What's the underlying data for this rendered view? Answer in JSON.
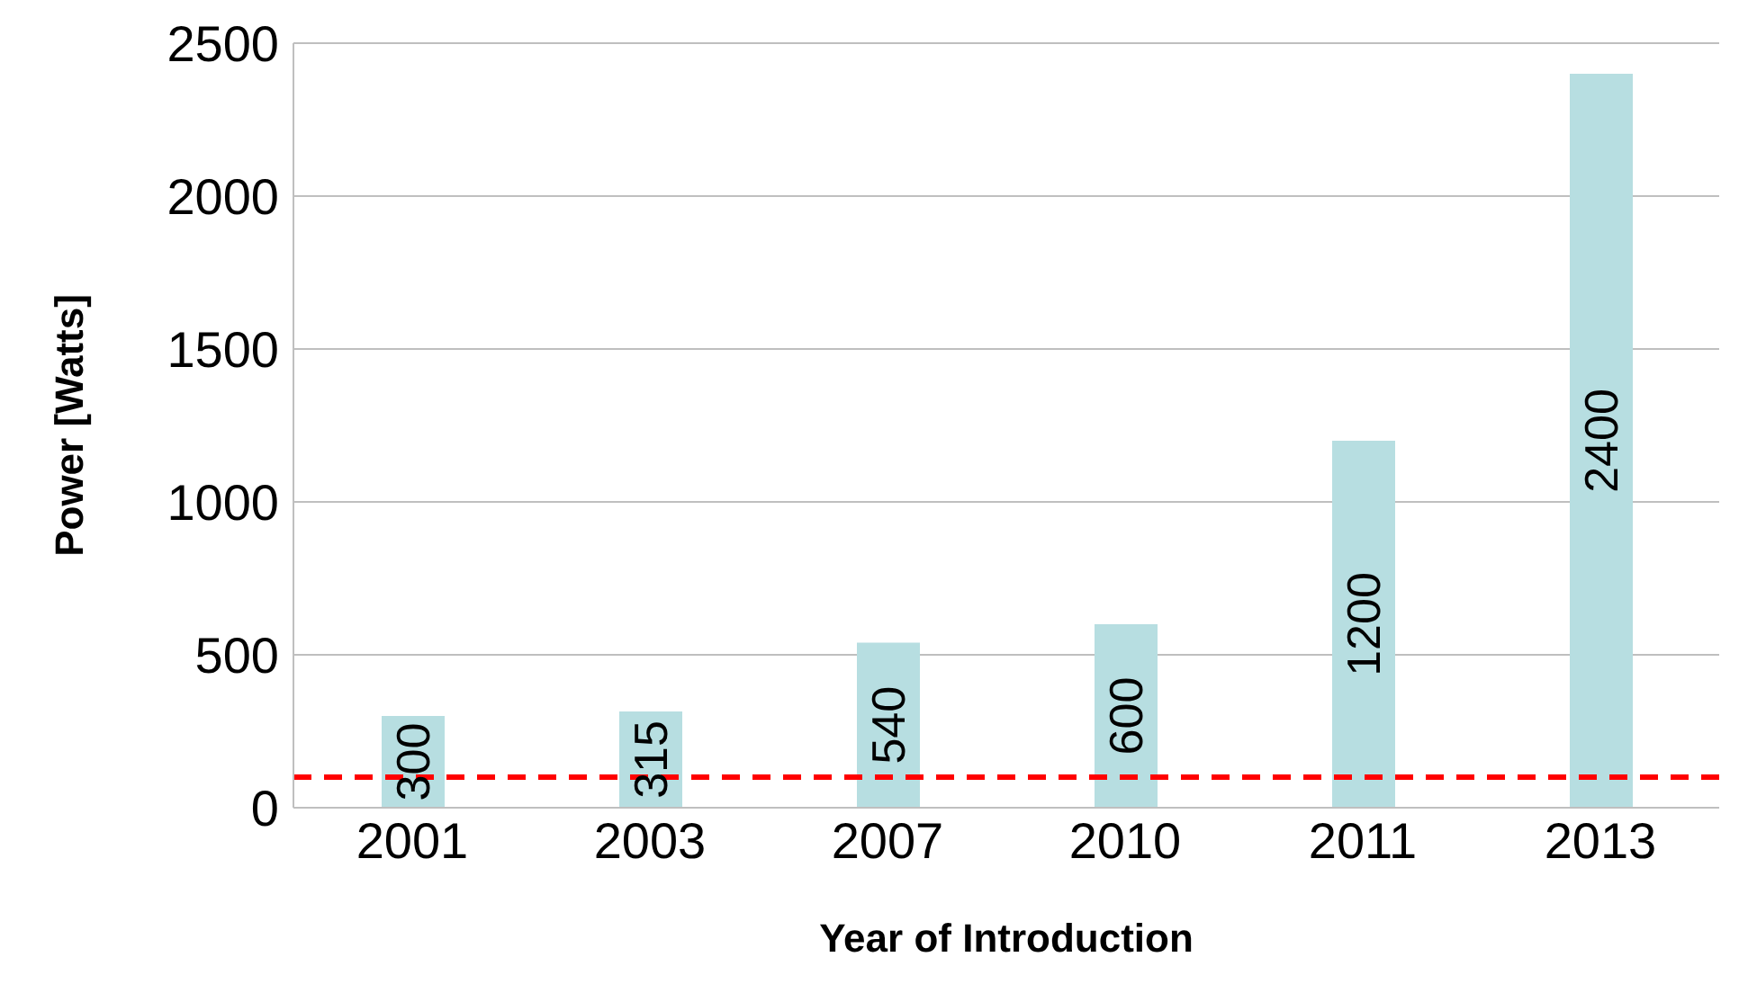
{
  "chart_data": {
    "type": "bar",
    "xlabel": "Year of Introduction",
    "ylabel": "Power  [Watts]",
    "categories": [
      "2001",
      "2003",
      "2007",
      "2010",
      "2011",
      "2013"
    ],
    "values": [
      300,
      315,
      540,
      600,
      1200,
      2400
    ],
    "color": "#b7dee1",
    "ylim": [
      0,
      2500
    ],
    "yticks": [
      0,
      500,
      1000,
      1500,
      2000,
      2500
    ],
    "grid": "y",
    "data_labels": true,
    "ref_lines": [
      {
        "axis": "y",
        "value": 100,
        "color": "#ff0000",
        "line_style": "dashed"
      }
    ]
  }
}
